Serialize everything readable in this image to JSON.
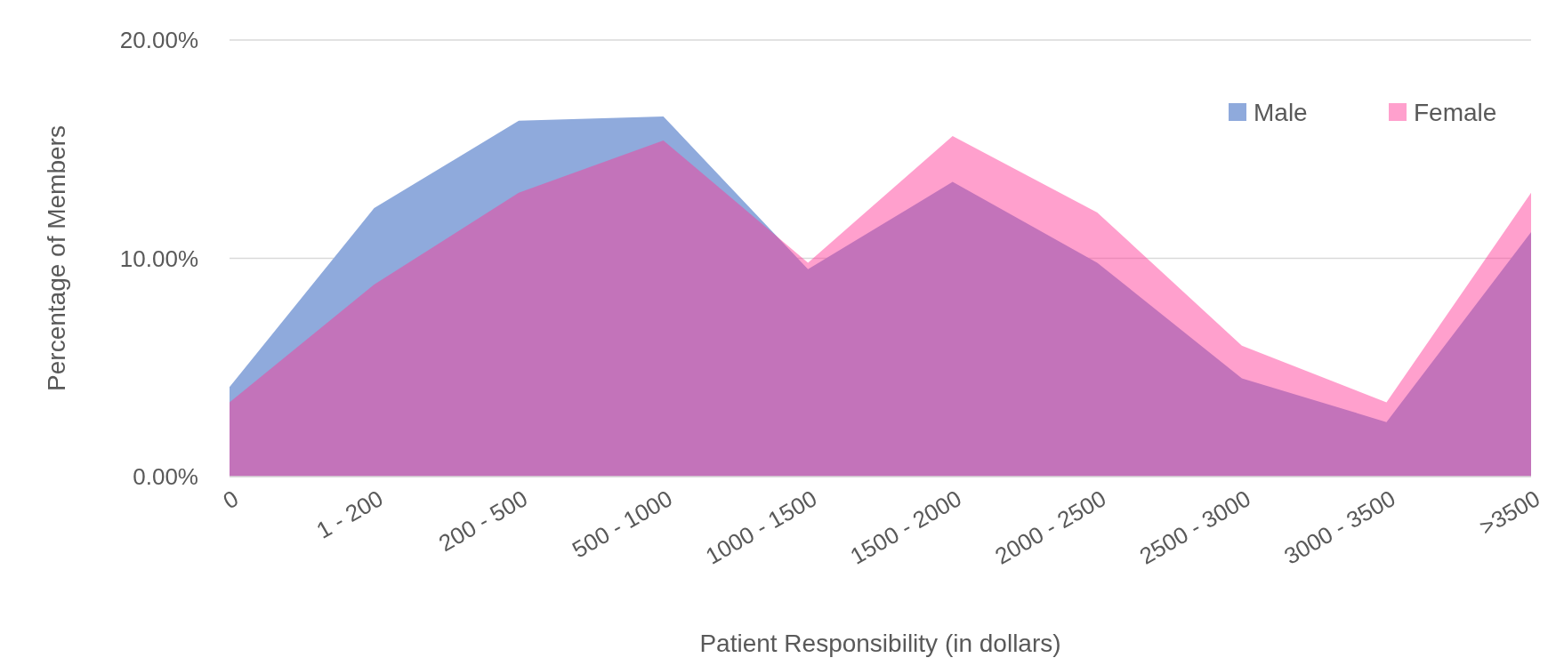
{
  "chart_data": {
    "type": "area",
    "xlabel": "Patient Responsibility (in dollars)",
    "ylabel": "Percentage of Members",
    "categories": [
      "0",
      "1 - 200",
      "200 - 500",
      "500 - 1000",
      "1000 - 1500",
      "1500 - 2000",
      "2000 - 2500",
      "2500 - 3000",
      "3000 - 3500",
      ">3500"
    ],
    "series": [
      {
        "name": "Male",
        "color": "#8faadc",
        "values": [
          4.1,
          12.3,
          16.3,
          16.5,
          9.5,
          13.5,
          9.8,
          4.5,
          2.5,
          11.2
        ]
      },
      {
        "name": "Female",
        "color": "#ff3594",
        "values": [
          3.4,
          8.8,
          13.0,
          15.4,
          9.8,
          15.6,
          12.1,
          6.0,
          3.4,
          13.0
        ]
      }
    ],
    "ylim": [
      0,
      20
    ],
    "yticks": [
      {
        "value": 0,
        "label": "0.00%"
      },
      {
        "value": 10,
        "label": "10.00%"
      },
      {
        "value": 20,
        "label": "20.00%"
      }
    ],
    "grid": "y",
    "legend": "top right"
  }
}
